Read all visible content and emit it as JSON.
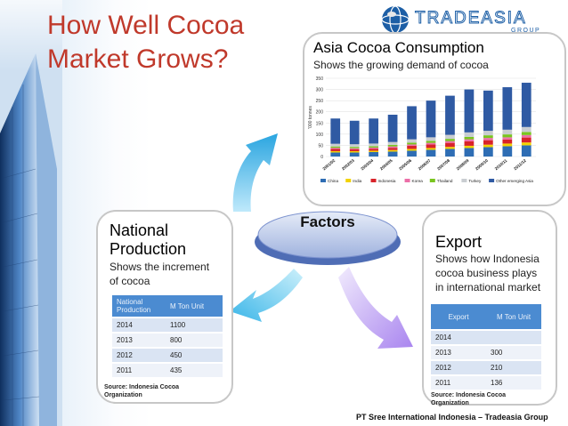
{
  "title_line1": "How Well Cocoa",
  "title_line2": "Market Grows?",
  "logo": {
    "text": "TRADEASIA",
    "sub": "GROUP",
    "icon": "globe-icon"
  },
  "asia": {
    "title": "Asia Cocoa Consumption",
    "subtitle": "Shows the growing demand of cocoa"
  },
  "factors": {
    "label": "Factors"
  },
  "national": {
    "title_line1": "National",
    "title_line2": "Production",
    "subtitle_line1": "Shows the increment",
    "subtitle_line2": "of cocoa",
    "headers": [
      "National Production",
      "M Ton Unit"
    ],
    "rows": [
      [
        "2014",
        "1100"
      ],
      [
        "2013",
        "800"
      ],
      [
        "2012",
        "450"
      ],
      [
        "2011",
        "435"
      ]
    ],
    "source": "Source: Indonesia Cocoa Organization"
  },
  "export": {
    "title": "Export",
    "subtitle_line1": "Shows how Indonesia",
    "subtitle_line2": "cocoa business plays",
    "subtitle_line3": "in international market",
    "headers": [
      "Export",
      "M Ton Unit"
    ],
    "rows": [
      [
        "2014",
        ""
      ],
      [
        "2013",
        "300"
      ],
      [
        "2012",
        "210"
      ],
      [
        "2011",
        "136"
      ]
    ],
    "source": "Source: Indonesia Cocoa Organization"
  },
  "footer": "PT Sree International Indonesia – Tradeasia Group",
  "colors": {
    "title": "#c0392b",
    "table_header": "#4b8bd1",
    "arrow": "#35b6e8",
    "arrow2": "#b79cf0"
  },
  "chart_data": {
    "type": "bar",
    "stacked": true,
    "ylabel": "'000 tonnes",
    "ylim": [
      0,
      350
    ],
    "yticks": [
      0,
      50,
      100,
      150,
      200,
      250,
      300,
      350
    ],
    "categories": [
      "2001/02",
      "2002/03",
      "2003/04",
      "2004/05",
      "2005/06",
      "2006/07",
      "2007/08",
      "2008/09",
      "2009/10",
      "2010/11",
      "2011/12"
    ],
    "series": [
      {
        "name": "China",
        "color": "#2e6db4",
        "values": [
          18,
          18,
          20,
          22,
          26,
          30,
          34,
          38,
          42,
          46,
          50
        ]
      },
      {
        "name": "India",
        "color": "#f2d200",
        "values": [
          6,
          6,
          6,
          7,
          8,
          8,
          9,
          10,
          11,
          12,
          13
        ]
      },
      {
        "name": "Indonesia",
        "color": "#d8232a",
        "values": [
          10,
          8,
          9,
          10,
          14,
          16,
          18,
          20,
          20,
          18,
          22
        ]
      },
      {
        "name": "Korea",
        "color": "#ec6fa8",
        "values": [
          5,
          5,
          5,
          6,
          6,
          7,
          8,
          9,
          10,
          10,
          11
        ]
      },
      {
        "name": "Thailand",
        "color": "#79c51f",
        "values": [
          6,
          6,
          6,
          7,
          8,
          9,
          10,
          11,
          12,
          13,
          14
        ]
      },
      {
        "name": "Turkey",
        "color": "#c9cdd1",
        "values": [
          12,
          12,
          12,
          13,
          15,
          16,
          18,
          20,
          20,
          21,
          22
        ]
      },
      {
        "name": "Other emerging Asia",
        "color": "#2f5aa3",
        "values": [
          113,
          105,
          112,
          122,
          148,
          164,
          175,
          192,
          180,
          190,
          198
        ]
      }
    ]
  }
}
